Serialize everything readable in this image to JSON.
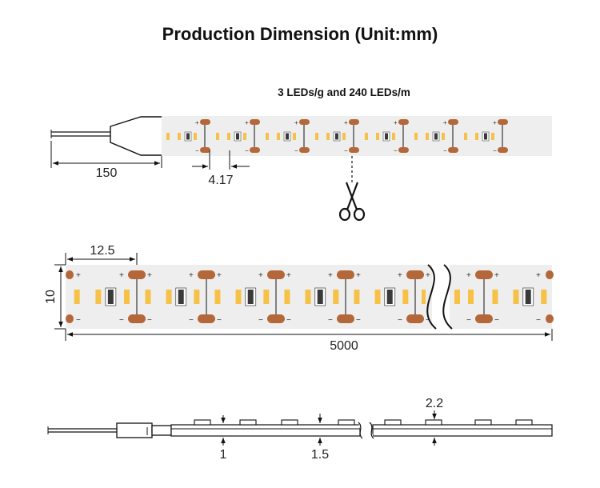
{
  "title": "Production Dimension (Unit:mm)",
  "subtitle": "3 LEDs/g and 240 LEDs/m",
  "dimensions": {
    "lead_length": "150",
    "led_pitch": "4.17",
    "cut_unit": "12.5",
    "width": "10",
    "total_length": "5000",
    "pcb_thickness": "1",
    "total_thickness": "1.5",
    "led_height": "2.2"
  },
  "polarity": {
    "plus": "+",
    "minus": "−"
  },
  "colors": {
    "strip_fill": "#eeeeee",
    "pad_copper": "#b4683a",
    "led_yellow": "#f6c146",
    "resistor_dark": "#3a3a3a",
    "line": "#111111"
  }
}
